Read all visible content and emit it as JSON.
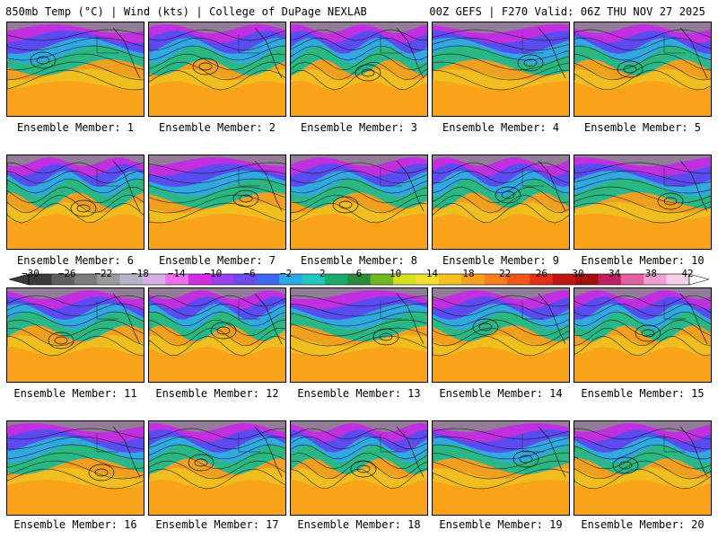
{
  "header": {
    "left": "850mb Temp (°C) | Wind (kts) | College of DuPage NEXLAB",
    "right": "00Z GEFS | F270 Valid: 06Z THU NOV 27 2025"
  },
  "members": [
    {
      "label": "Ensemble Member: 1"
    },
    {
      "label": "Ensemble Member: 2"
    },
    {
      "label": "Ensemble Member: 3"
    },
    {
      "label": "Ensemble Member: 4"
    },
    {
      "label": "Ensemble Member: 5"
    },
    {
      "label": "Ensemble Member: 6"
    },
    {
      "label": "Ensemble Member: 7"
    },
    {
      "label": "Ensemble Member: 8"
    },
    {
      "label": "Ensemble Member: 9"
    },
    {
      "label": "Ensemble Member: 10"
    },
    {
      "label": "Ensemble Member: 11"
    },
    {
      "label": "Ensemble Member: 12"
    },
    {
      "label": "Ensemble Member: 13"
    },
    {
      "label": "Ensemble Member: 14"
    },
    {
      "label": "Ensemble Member: 15"
    },
    {
      "label": "Ensemble Member: 16"
    },
    {
      "label": "Ensemble Member: 17"
    },
    {
      "label": "Ensemble Member: 18"
    },
    {
      "label": "Ensemble Member: 19"
    },
    {
      "label": "Ensemble Member: 20"
    }
  ],
  "colorbar": {
    "ticks": [
      "−30",
      "−26",
      "−22",
      "−18",
      "−14",
      "−10",
      "−6",
      "−2",
      "2",
      "6",
      "10",
      "14",
      "18",
      "22",
      "26",
      "30",
      "34",
      "38",
      "42"
    ],
    "colors": [
      "#3a3a3a",
      "#5e5e5e",
      "#7c7c7c",
      "#9a9a9a",
      "#b4b4c8",
      "#d8b0e8",
      "#f070f0",
      "#d030e0",
      "#9a40f0",
      "#6a4cf0",
      "#3a6af0",
      "#2aa8e8",
      "#22c8c0",
      "#1aaa6a",
      "#2e8a3a",
      "#70b820",
      "#d6e020",
      "#f8e030",
      "#f8c020",
      "#f8a020",
      "#f88020",
      "#f05818",
      "#e03018",
      "#c01818",
      "#a01010",
      "#c02060",
      "#e060a0",
      "#f0a0d0",
      "#f8d0e8"
    ]
  }
}
